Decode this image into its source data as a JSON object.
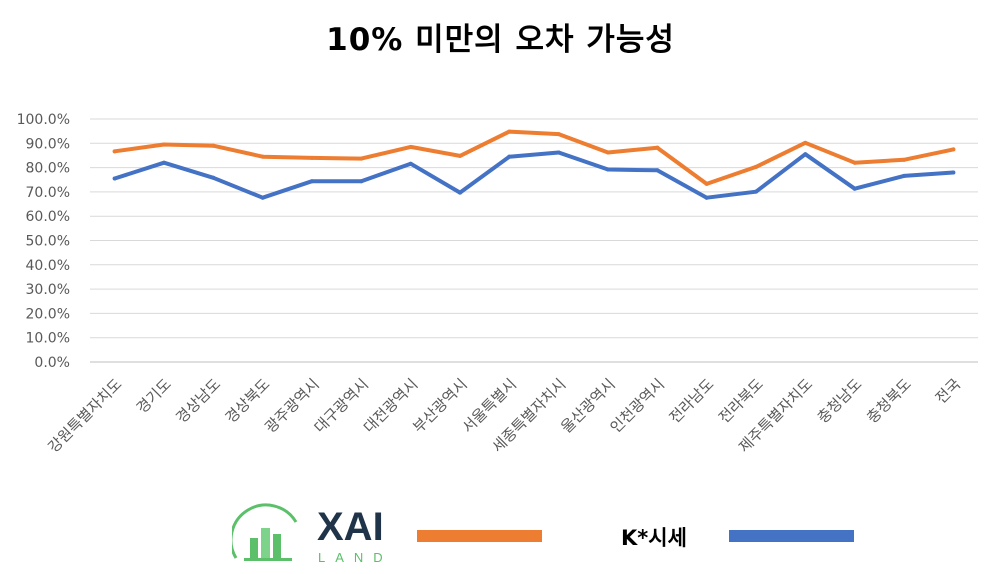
{
  "chart_data": {
    "type": "line",
    "title": "10% 미만의 오차 가능성",
    "xlabel": "",
    "ylabel": "",
    "ylim": [
      0,
      100
    ],
    "yticks": [
      "0.0%",
      "10.0%",
      "20.0%",
      "30.0%",
      "40.0%",
      "50.0%",
      "60.0%",
      "70.0%",
      "80.0%",
      "90.0%",
      "100.0%"
    ],
    "grid": true,
    "categories": [
      "강원특별자치도",
      "경기도",
      "경상남도",
      "경상북도",
      "광주광역시",
      "대구광역시",
      "대전광역시",
      "부산광역시",
      "서울특별시",
      "세종특별자치시",
      "울산광역시",
      "인천광역시",
      "전라남도",
      "전라북도",
      "제주특별자치도",
      "충청남도",
      "충청북도",
      "전국"
    ],
    "series": [
      {
        "name": "",
        "color": "#ED7D31",
        "values": [
          86.7,
          89.5,
          89.0,
          84.5,
          84.0,
          83.7,
          88.5,
          84.8,
          94.8,
          93.8,
          86.2,
          88.2,
          73.3,
          80.3,
          90.2,
          82.0,
          83.2,
          87.5
        ]
      },
      {
        "name": "K*시세",
        "color": "#4472C4",
        "values": [
          75.5,
          82.0,
          75.8,
          67.6,
          74.4,
          74.4,
          81.6,
          69.7,
          84.5,
          86.2,
          79.2,
          78.9,
          67.6,
          70.1,
          85.5,
          71.3,
          76.6,
          78.0
        ]
      }
    ]
  },
  "legend": {
    "logo_text": "XAI",
    "logo_subtext": "LAND",
    "series2_label": "K*시세"
  },
  "colors": {
    "logo_dark": "#1F3349",
    "logo_green": "#5CBF6A",
    "grid": "#D9D9D9",
    "tick_text": "#595959"
  }
}
